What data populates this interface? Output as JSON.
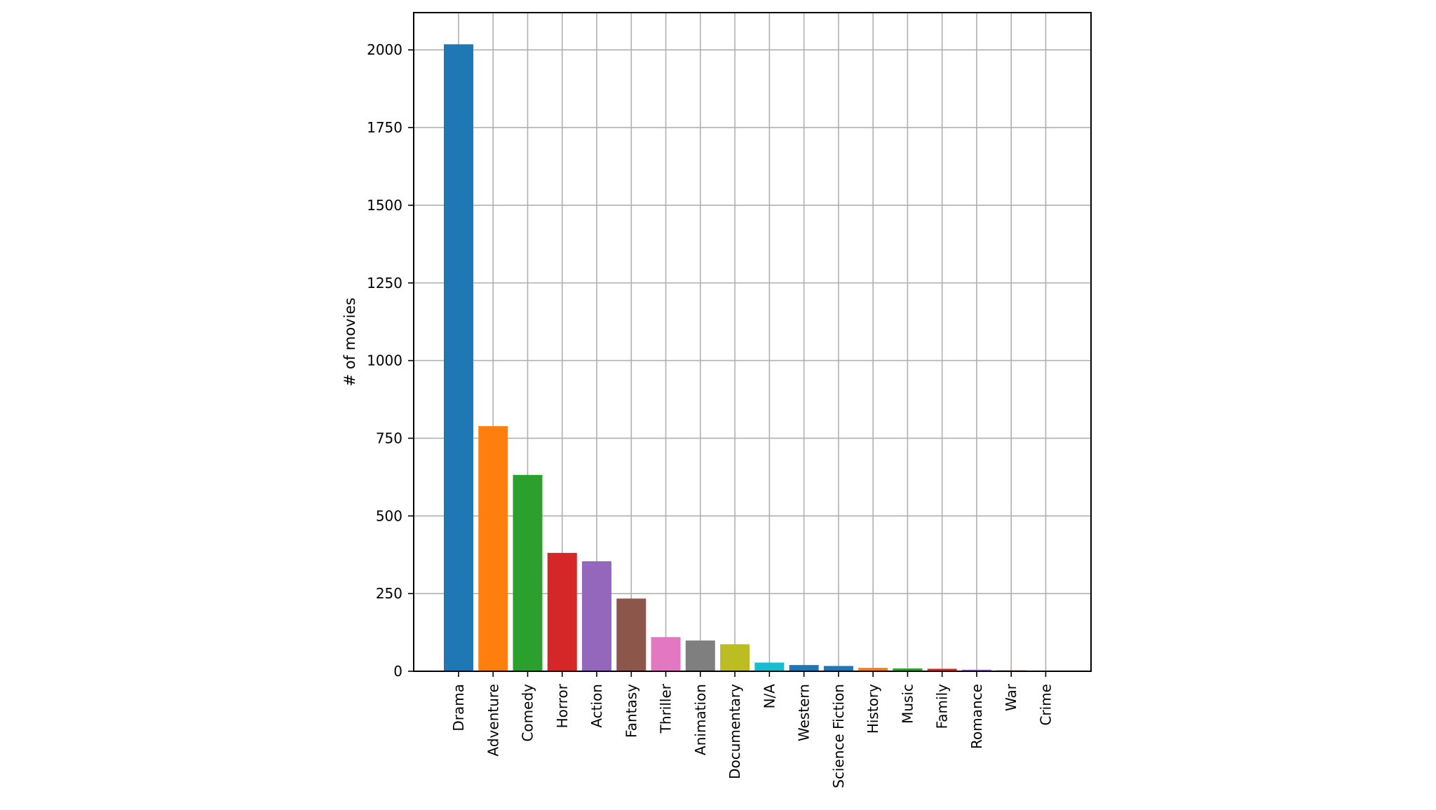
{
  "chart_data": {
    "type": "bar",
    "title": "",
    "xlabel": "",
    "ylabel": "# of movies",
    "ylim": [
      0,
      2120
    ],
    "yticks": [
      0,
      250,
      500,
      750,
      1000,
      1250,
      1500,
      1750,
      2000
    ],
    "grid": true,
    "categories": [
      "Drama",
      "Adventure",
      "Comedy",
      "Horror",
      "Action",
      "Fantasy",
      "Thriller",
      "Animation",
      "Documentary",
      "N/A",
      "Western",
      "Science Fiction",
      "History",
      "Music",
      "Family",
      "Romance",
      "War",
      "Crime"
    ],
    "values": [
      2018,
      789,
      632,
      381,
      354,
      234,
      110,
      99,
      87,
      28,
      20,
      17,
      11,
      9,
      8,
      5,
      3,
      2
    ],
    "colors": [
      "#1f77b4",
      "#ff7f0e",
      "#2ca02c",
      "#d62728",
      "#9467bd",
      "#8c564b",
      "#e377c2",
      "#7f7f7f",
      "#bcbd22",
      "#17becf",
      "#1f77b4",
      "#1f77b4",
      "#ff7f0e",
      "#2ca02c",
      "#d62728",
      "#9467bd",
      "#8c564b",
      "#e377c2"
    ]
  }
}
